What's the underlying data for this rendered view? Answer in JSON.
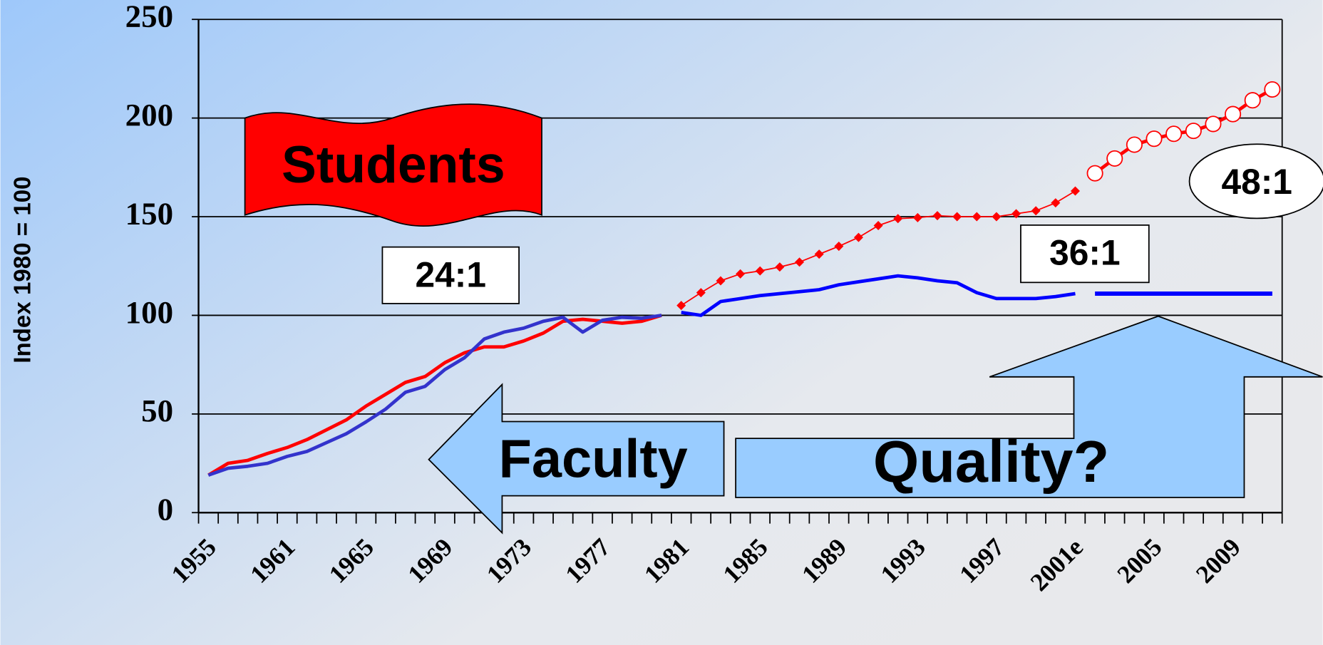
{
  "chart_data": {
    "type": "line",
    "ylabel": "Index 1980 = 100",
    "categories": [
      "1955",
      null,
      null,
      null,
      "1961",
      null,
      null,
      null,
      "1965",
      null,
      null,
      null,
      "1969",
      null,
      null,
      null,
      "1973",
      null,
      null,
      null,
      "1977",
      null,
      null,
      null,
      "1981",
      null,
      null,
      null,
      "1985",
      null,
      null,
      null,
      "1989",
      null,
      null,
      null,
      "1993",
      null,
      null,
      null,
      "1997",
      null,
      null,
      null,
      "2001e",
      null,
      null,
      null,
      "2005",
      null,
      null,
      null,
      "2009",
      null,
      null
    ],
    "ylim": [
      0,
      250
    ],
    "yticks": [
      0,
      50,
      100,
      150,
      200,
      250
    ],
    "grid": true,
    "series": [
      {
        "name": "Students",
        "color": "#ff0000",
        "width": 4,
        "marker": "none",
        "values": [
          19,
          25,
          26.5,
          30,
          33,
          37,
          42,
          47,
          54,
          60,
          66,
          69,
          76,
          81,
          84,
          84,
          87,
          91,
          97,
          98,
          97,
          96,
          97,
          100,
          null,
          null,
          null,
          null,
          null,
          null,
          null,
          null,
          null,
          null,
          null,
          null,
          null,
          null,
          null,
          null,
          null,
          null,
          null,
          null,
          null,
          null,
          null,
          null,
          null,
          null,
          null,
          null,
          null,
          null,
          null
        ]
      },
      {
        "color": "#ff0000",
        "width": 1.5,
        "marker": "diamond",
        "values": [
          null,
          null,
          null,
          null,
          null,
          null,
          null,
          null,
          null,
          null,
          null,
          null,
          null,
          null,
          null,
          null,
          null,
          null,
          null,
          null,
          null,
          null,
          null,
          null,
          105,
          111.5,
          117.5,
          121,
          122.5,
          124.5,
          127,
          131,
          135,
          139.5,
          145.5,
          149,
          149.5,
          150.5,
          150,
          150,
          150,
          151.5,
          153,
          157,
          163,
          null,
          null,
          null,
          null,
          null,
          null,
          null,
          null,
          null,
          null
        ]
      },
      {
        "color": "#ff0000",
        "width": 4,
        "marker": "circle",
        "values": [
          null,
          null,
          null,
          null,
          null,
          null,
          null,
          null,
          null,
          null,
          null,
          null,
          null,
          null,
          null,
          null,
          null,
          null,
          null,
          null,
          null,
          null,
          null,
          null,
          null,
          null,
          null,
          null,
          null,
          null,
          null,
          null,
          null,
          null,
          null,
          null,
          null,
          null,
          null,
          null,
          null,
          null,
          null,
          null,
          null,
          172,
          179.5,
          186.5,
          189.5,
          192,
          193.5,
          197,
          202,
          209,
          214.5
        ]
      },
      {
        "name": "Faculty",
        "color": "#3333cc",
        "width": 4,
        "marker": "none",
        "values": [
          19,
          22.5,
          23.5,
          25,
          28.5,
          31,
          35.5,
          40,
          46,
          52.5,
          61,
          64,
          72.5,
          78.5,
          88,
          91.5,
          93.5,
          97,
          99,
          91.5,
          97.5,
          99,
          98.5,
          100,
          null,
          null,
          null,
          null,
          null,
          null,
          null,
          null,
          null,
          null,
          null,
          null,
          null,
          null,
          null,
          null,
          null,
          null,
          null,
          null,
          null,
          null,
          null,
          null,
          null,
          null,
          null,
          null,
          null,
          null,
          null
        ]
      },
      {
        "color": "#0000ff",
        "width": 4,
        "marker": "none",
        "values": [
          null,
          null,
          null,
          null,
          null,
          null,
          null,
          null,
          null,
          null,
          null,
          null,
          null,
          null,
          null,
          null,
          null,
          null,
          null,
          null,
          null,
          null,
          null,
          null,
          101.5,
          100,
          107,
          108.5,
          110,
          111,
          112,
          113,
          115.5,
          117,
          118.5,
          120,
          119,
          117.5,
          116.5,
          111.5,
          108.5,
          108.5,
          108.5,
          109.5,
          111,
          null,
          null,
          null,
          null,
          null,
          null,
          null,
          null,
          null,
          null
        ]
      },
      {
        "color": "#0000ff",
        "width": 5,
        "marker": "none",
        "values": [
          null,
          null,
          null,
          null,
          null,
          null,
          null,
          null,
          null,
          null,
          null,
          null,
          null,
          null,
          null,
          null,
          null,
          null,
          null,
          null,
          null,
          null,
          null,
          null,
          null,
          null,
          null,
          null,
          null,
          null,
          null,
          null,
          null,
          null,
          null,
          null,
          null,
          null,
          null,
          null,
          null,
          null,
          null,
          null,
          null,
          111,
          111,
          111,
          111,
          111,
          111,
          111,
          111,
          111,
          111
        ]
      }
    ],
    "annotations": [
      "24:1",
      "36:1",
      "48:1",
      "Quality?"
    ]
  }
}
